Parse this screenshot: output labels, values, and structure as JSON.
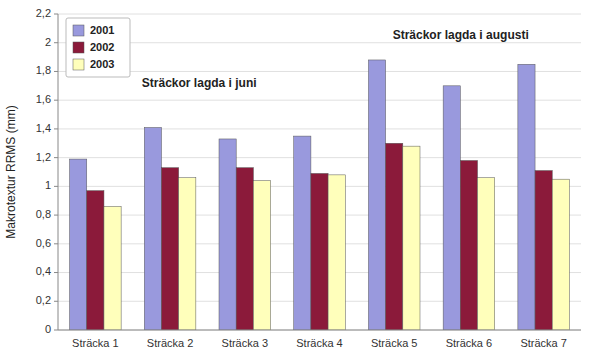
{
  "chart_data": {
    "type": "bar",
    "y_label": "Makrotextur RRMS (mm)",
    "categories": [
      "Sträcka 1",
      "Sträcka 2",
      "Sträcka 3",
      "Sträcka 4",
      "Sträcka 5",
      "Sträcka 6",
      "Sträcka 7"
    ],
    "series": [
      {
        "name": "2001",
        "color": "#9999dd",
        "values": [
          1.19,
          1.41,
          1.33,
          1.35,
          1.88,
          1.7,
          1.85
        ]
      },
      {
        "name": "2002",
        "color": "#8b1a3a",
        "values": [
          0.97,
          1.13,
          1.13,
          1.09,
          1.3,
          1.18,
          1.11
        ]
      },
      {
        "name": "2003",
        "color": "#ffffbb",
        "values": [
          0.86,
          1.06,
          1.04,
          1.08,
          1.28,
          1.06,
          1.05
        ]
      }
    ],
    "ylim": [
      0,
      2.2
    ],
    "yticks": [
      0,
      {
        "value": 0.2,
        "label": "0,2"
      },
      {
        "value": 0.4,
        "label": "0,4"
      },
      {
        "value": 0.6,
        "label": "0,6"
      },
      {
        "value": 0.8,
        "label": "0,8"
      },
      1,
      {
        "value": 1.2,
        "label": "1,2"
      },
      {
        "value": 1.4,
        "label": "1,4"
      },
      {
        "value": 1.6,
        "label": "1,6"
      },
      {
        "value": 1.8,
        "label": "1,8"
      },
      2,
      {
        "value": 2.2,
        "label": "2,2"
      }
    ],
    "annotations": [
      "Sträckor lagda i juni",
      "Sträckor lagda i augusti"
    ],
    "grid": true,
    "legend": "upper left"
  }
}
